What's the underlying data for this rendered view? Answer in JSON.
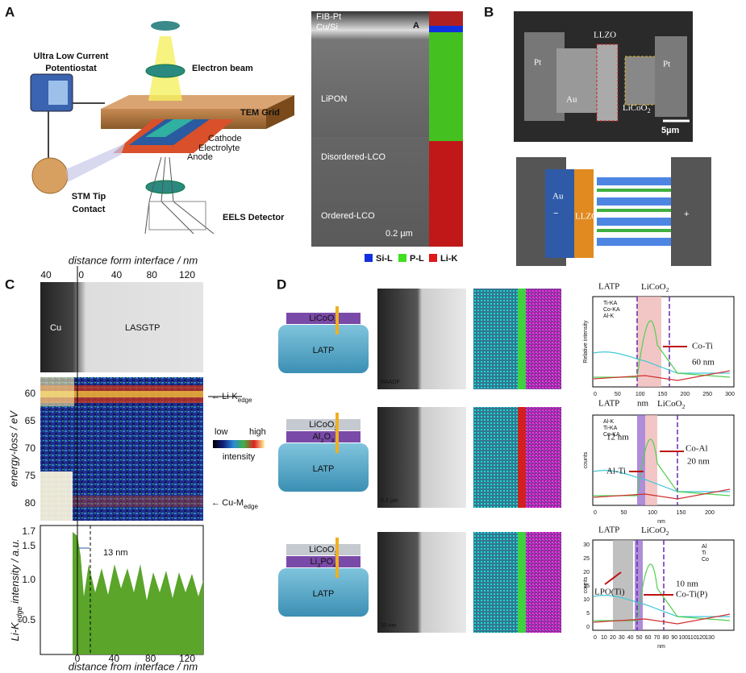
{
  "panel_a": {
    "label": "A",
    "potentiostat": [
      "Ultra Low Current",
      "Potentiostat"
    ],
    "electron_beam": "Electron beam",
    "tem_grid": "TEM Grid",
    "cathode": "Cathode",
    "electrolyte": "Electrolyte",
    "anode": "Anode",
    "stm_tip": [
      "STM Tip",
      "Contact"
    ],
    "eels": "EELS Detector",
    "micrograph": {
      "fib": "FIB-Pt",
      "cusi": "Cu/Si",
      "inset": "A",
      "lipon": "LiPON",
      "disordered": "Disordered-LCO",
      "ordered": "Ordered-LCO",
      "scale": "0.2 µm"
    },
    "legend": [
      "Si-L",
      "P-L",
      "Li-K"
    ]
  },
  "panel_b": {
    "label": "B",
    "llzo": "LLZO",
    "pt_left": "Pt",
    "au": "Au",
    "licoo2": [
      "LiCoO",
      "2"
    ],
    "pt_right": "Pt",
    "scale": "5µm",
    "schematic": {
      "minus": "−",
      "au": "Au",
      "llzo": "LLZO",
      "plus": "+"
    }
  },
  "panel_c": {
    "label": "C",
    "top_axis_label": "distance form interface / nm",
    "top_ticks": [
      "40",
      "0",
      "40",
      "80",
      "120"
    ],
    "cu": "Cu",
    "lasgtp": "LASGTP",
    "energy_label": "energy-loss / eV",
    "energy_ticks": [
      "60",
      "65",
      "70",
      "75",
      "80"
    ],
    "li_k": [
      "Li-K",
      "edge"
    ],
    "cu_m": [
      "Cu-M",
      "edge"
    ],
    "colorbar": {
      "low": "low",
      "high": "high",
      "title": "intensity"
    },
    "intensity_label": [
      "Li-K",
      "edge",
      " intensity / a.u."
    ],
    "intensity_ticks": [
      "1.7",
      "1.5",
      "1.0",
      "0.5"
    ],
    "width": "13 nm",
    "bottom_ticks": [
      "0",
      "40",
      "80",
      "120"
    ],
    "bottom_axis_label": "distance from interface / nm"
  },
  "panel_d": {
    "label": "D",
    "rows": [
      {
        "layers": [
          [
            "LiCoO",
            "2"
          ]
        ],
        "substrate": "LATP",
        "tem_tag": "HAADF",
        "plot": {
          "top": [
            "LATP",
            [
              "LiCoO",
              "2"
            ]
          ],
          "legend": [
            "Ti-KA",
            "Co-KA",
            "Al-K"
          ],
          "annotations": [
            "Co-Ti",
            "60 nm"
          ],
          "ylabel": "Relative intensity",
          "xticks": [
            "0",
            "50",
            "100",
            "150",
            "200",
            "250",
            "300"
          ],
          "bottom": [
            "LATP",
            "nm",
            [
              "LiCoO",
              "2"
            ]
          ]
        }
      },
      {
        "layers": [
          [
            "LiCoO",
            "2"
          ],
          [
            "Al",
            "2",
            "O",
            "3"
          ]
        ],
        "substrate": "LATP",
        "tem_tag": "0.2 µm",
        "plot": {
          "legend": [
            "Al-K",
            "Ti-KA",
            "Co-KA"
          ],
          "annotations": [
            "12 nm",
            "Al-Ti",
            "Co-Al",
            "20 nm"
          ],
          "ylabel": "counts",
          "xticks": [
            "0",
            "50",
            "100",
            "150",
            "200"
          ],
          "xlabel": "nm"
        }
      },
      {
        "layers": [
          [
            "LiCoO",
            "2"
          ],
          [
            "Li",
            "3",
            "PO",
            "4"
          ]
        ],
        "substrate": "LATP",
        "tem_tag": "50 nm",
        "plot": {
          "top": [
            "LATP",
            [
              "LiCoO",
              "2"
            ]
          ],
          "legend": [
            "Al",
            "Ti",
            "Co"
          ],
          "annotations": [
            "LPO(Ti)",
            "10 nm",
            "Co-Ti(P)"
          ],
          "ylabel": "counts",
          "yticks": [
            "30",
            "25",
            "20",
            "15",
            "10",
            "5",
            "0"
          ],
          "xticks": [
            "0",
            "10",
            "20",
            "30",
            "40",
            "50",
            "60",
            "70",
            "80",
            "90",
            "100",
            "110",
            "120",
            "130"
          ],
          "xlabel": "nm"
        }
      }
    ]
  }
}
